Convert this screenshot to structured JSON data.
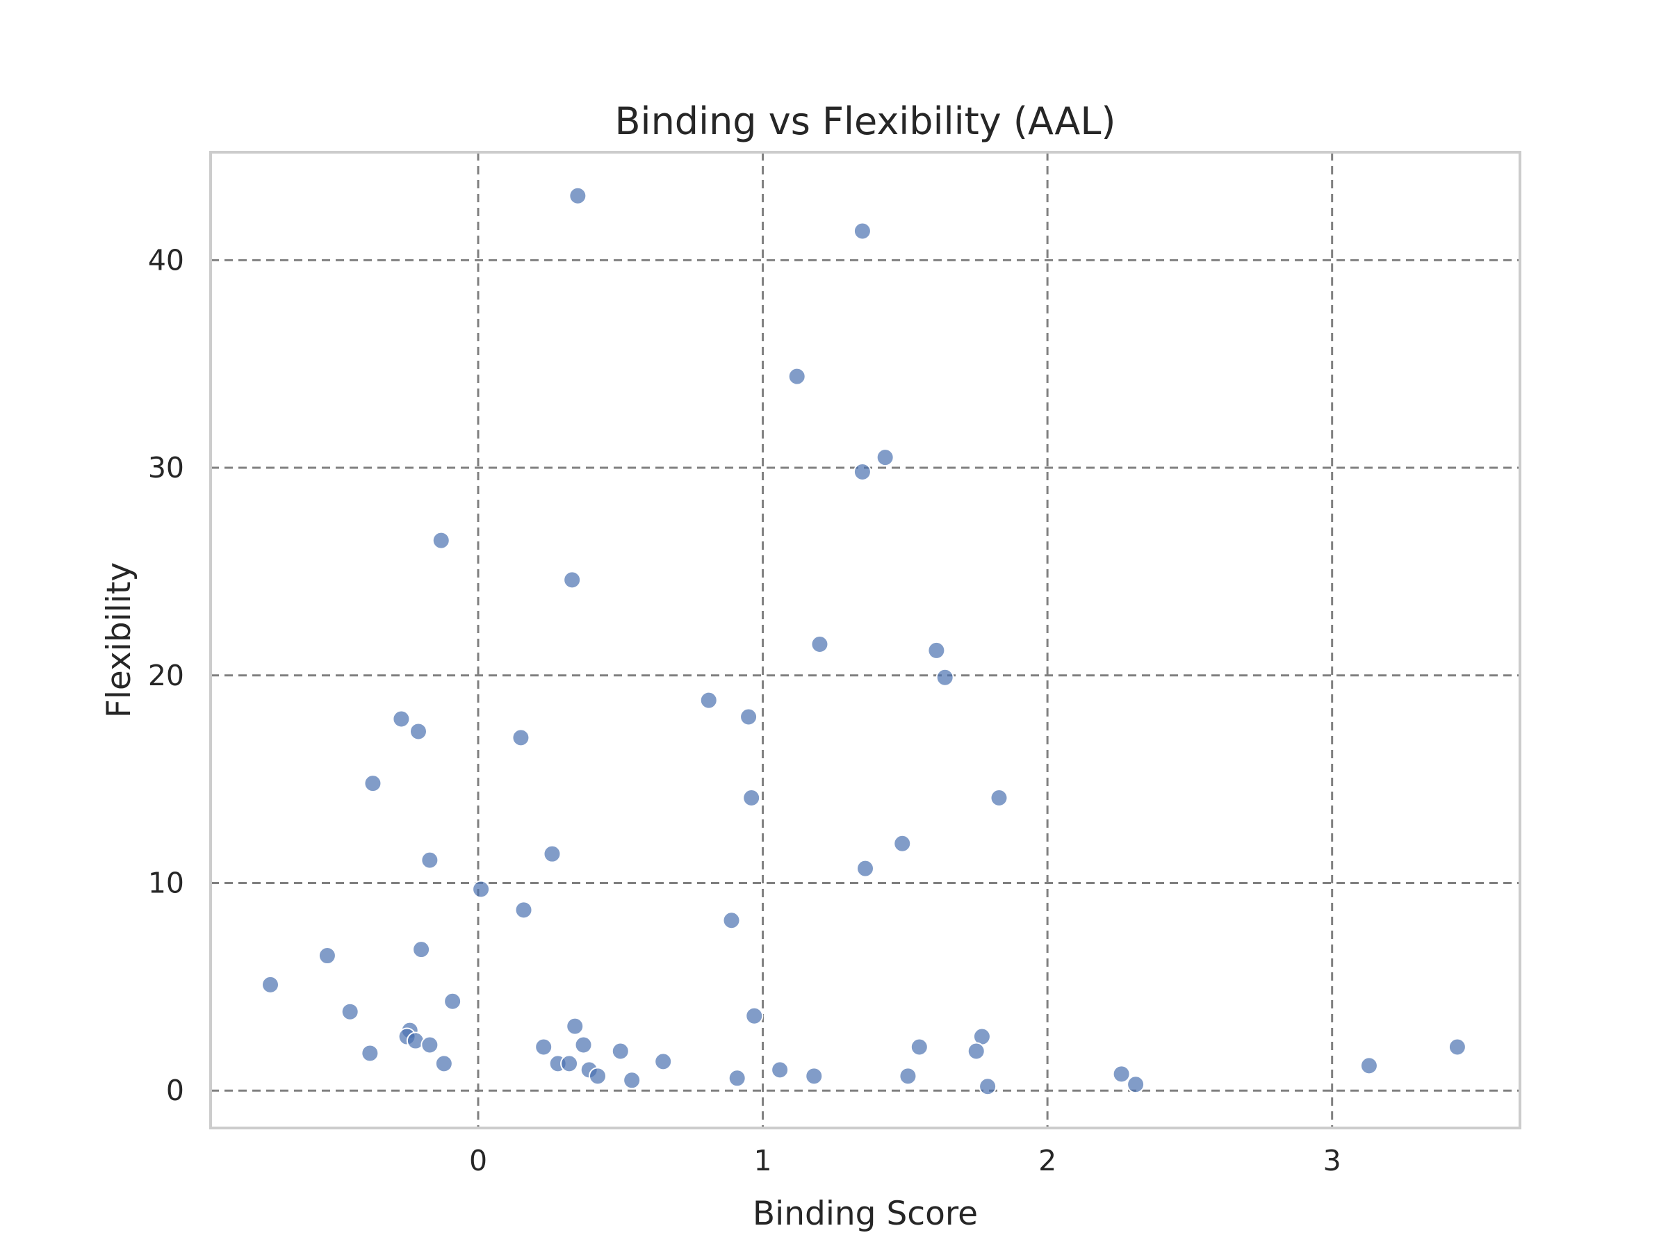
{
  "chart_data": {
    "type": "scatter",
    "title": "Binding vs Flexibility (AAL)",
    "xlabel": "Binding Score",
    "ylabel": "Flexibility",
    "xlim": [
      -0.94,
      3.66
    ],
    "ylim": [
      -1.8,
      45.2
    ],
    "xticks": [
      0,
      1,
      2,
      3
    ],
    "yticks": [
      0,
      10,
      20,
      30,
      40
    ],
    "grid": true,
    "grid_style": "dashed",
    "marker_color": "#4c72b0",
    "points": [
      {
        "x": 0.35,
        "y": 43.1
      },
      {
        "x": 1.35,
        "y": 41.4
      },
      {
        "x": 1.12,
        "y": 34.4
      },
      {
        "x": 1.43,
        "y": 30.5
      },
      {
        "x": 1.35,
        "y": 29.8
      },
      {
        "x": -0.13,
        "y": 26.5
      },
      {
        "x": 0.33,
        "y": 24.6
      },
      {
        "x": 1.2,
        "y": 21.5
      },
      {
        "x": 1.61,
        "y": 21.2
      },
      {
        "x": 1.64,
        "y": 19.9
      },
      {
        "x": 0.81,
        "y": 18.8
      },
      {
        "x": 0.95,
        "y": 18.0
      },
      {
        "x": -0.27,
        "y": 17.9
      },
      {
        "x": -0.21,
        "y": 17.3
      },
      {
        "x": 0.15,
        "y": 17.0
      },
      {
        "x": -0.37,
        "y": 14.8
      },
      {
        "x": 0.96,
        "y": 14.1
      },
      {
        "x": 1.83,
        "y": 14.1
      },
      {
        "x": 1.49,
        "y": 11.9
      },
      {
        "x": 0.26,
        "y": 11.4
      },
      {
        "x": -0.17,
        "y": 11.1
      },
      {
        "x": 1.36,
        "y": 10.7
      },
      {
        "x": 0.01,
        "y": 9.7
      },
      {
        "x": 0.16,
        "y": 8.7
      },
      {
        "x": 0.89,
        "y": 8.2
      },
      {
        "x": -0.2,
        "y": 6.8
      },
      {
        "x": -0.53,
        "y": 6.5
      },
      {
        "x": -0.73,
        "y": 5.1
      },
      {
        "x": -0.09,
        "y": 4.3
      },
      {
        "x": -0.45,
        "y": 3.8
      },
      {
        "x": 0.97,
        "y": 3.6
      },
      {
        "x": 0.34,
        "y": 3.1
      },
      {
        "x": -0.24,
        "y": 2.9
      },
      {
        "x": -0.25,
        "y": 2.6
      },
      {
        "x": 1.77,
        "y": 2.6
      },
      {
        "x": -0.22,
        "y": 2.4
      },
      {
        "x": -0.17,
        "y": 2.2
      },
      {
        "x": 0.23,
        "y": 2.1
      },
      {
        "x": 0.37,
        "y": 2.2
      },
      {
        "x": 1.55,
        "y": 2.1
      },
      {
        "x": 3.44,
        "y": 2.1
      },
      {
        "x": -0.38,
        "y": 1.8
      },
      {
        "x": 0.5,
        "y": 1.9
      },
      {
        "x": 1.75,
        "y": 1.9
      },
      {
        "x": 0.65,
        "y": 1.4
      },
      {
        "x": -0.12,
        "y": 1.3
      },
      {
        "x": 0.28,
        "y": 1.3
      },
      {
        "x": 0.32,
        "y": 1.3
      },
      {
        "x": 3.13,
        "y": 1.2
      },
      {
        "x": 0.39,
        "y": 1.0
      },
      {
        "x": 1.06,
        "y": 1.0
      },
      {
        "x": 0.42,
        "y": 0.7
      },
      {
        "x": 0.91,
        "y": 0.6
      },
      {
        "x": 1.18,
        "y": 0.7
      },
      {
        "x": 1.51,
        "y": 0.7
      },
      {
        "x": 2.26,
        "y": 0.8
      },
      {
        "x": 0.54,
        "y": 0.5
      },
      {
        "x": 1.79,
        "y": 0.2
      },
      {
        "x": 2.31,
        "y": 0.3
      }
    ]
  }
}
